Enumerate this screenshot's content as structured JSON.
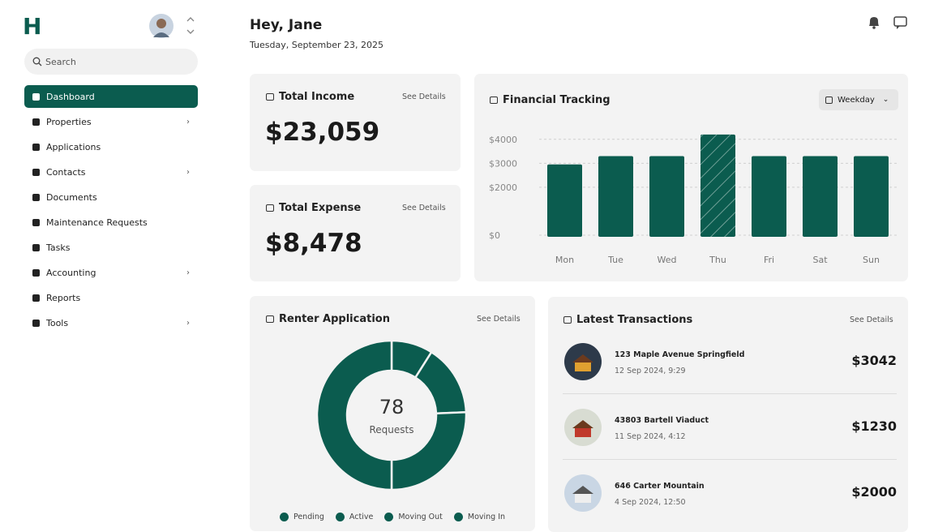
{
  "sidebar": {
    "logo": "H",
    "search_placeholder": "Search",
    "nav": [
      {
        "label": "Dashboard",
        "active": true,
        "expandable": false
      },
      {
        "label": "Properties",
        "active": false,
        "expandable": true
      },
      {
        "label": "Applications",
        "active": false,
        "expandable": false
      },
      {
        "label": "Contacts",
        "active": false,
        "expandable": true
      },
      {
        "label": "Documents",
        "active": false,
        "expandable": false
      },
      {
        "label": "Maintenance Requests",
        "active": false,
        "expandable": false
      },
      {
        "label": "Tasks",
        "active": false,
        "expandable": false
      },
      {
        "label": "Accounting",
        "active": false,
        "expandable": true
      },
      {
        "label": "Reports",
        "active": false,
        "expandable": false
      },
      {
        "label": "Tools",
        "active": false,
        "expandable": true
      }
    ]
  },
  "header": {
    "greeting": "Hey, Jane",
    "date": "Tuesday, September 23, 2025"
  },
  "cards": {
    "income": {
      "title": "Total Income",
      "link": "See Details",
      "amount": "$23,059"
    },
    "expense": {
      "title": "Total Expense",
      "link": "See Details",
      "amount": "$8,478"
    }
  },
  "financial_chart": {
    "type": "bar",
    "title": "Financial Tracking",
    "dropdown": "Weekday",
    "categories": [
      "Mon",
      "Tue",
      "Wed",
      "Thu",
      "Fri",
      "Sat",
      "Sun"
    ],
    "values": [
      2950,
      3300,
      3300,
      4200,
      3300,
      3300,
      3300
    ],
    "color": "#0b5c4f",
    "highlight": 3,
    "ylim": [
      0,
      4500
    ],
    "yticks": [
      {
        "value": 0,
        "label": "$0"
      },
      {
        "value": 2000,
        "label": "$2000"
      },
      {
        "value": 3000,
        "label": "$3000"
      },
      {
        "value": 4000,
        "label": "$4000"
      }
    ],
    "grid": true
  },
  "renter_chart": {
    "type": "donut",
    "title": "Renter Application",
    "link": "See Details",
    "center_value": 78,
    "center_label": "Requests",
    "categories": [
      "Pending",
      "Active",
      "Moving Out",
      "Moving In"
    ],
    "values": [
      7,
      12,
      20,
      39
    ],
    "color": "#0b5c4f"
  },
  "transactions": {
    "title": "Latest Transactions",
    "link": "See Details",
    "items": [
      {
        "address": "123 Maple Avenue Springfield",
        "date": "12 Sep 2024, 9:29",
        "amount": "$3042"
      },
      {
        "address": "43803 Bartell Viaduct",
        "date": "11 Sep 2024, 4:12",
        "amount": "$1230"
      },
      {
        "address": "646 Carter Mountain",
        "date": "4 Sep 2024, 12:50",
        "amount": "$2000"
      }
    ]
  }
}
